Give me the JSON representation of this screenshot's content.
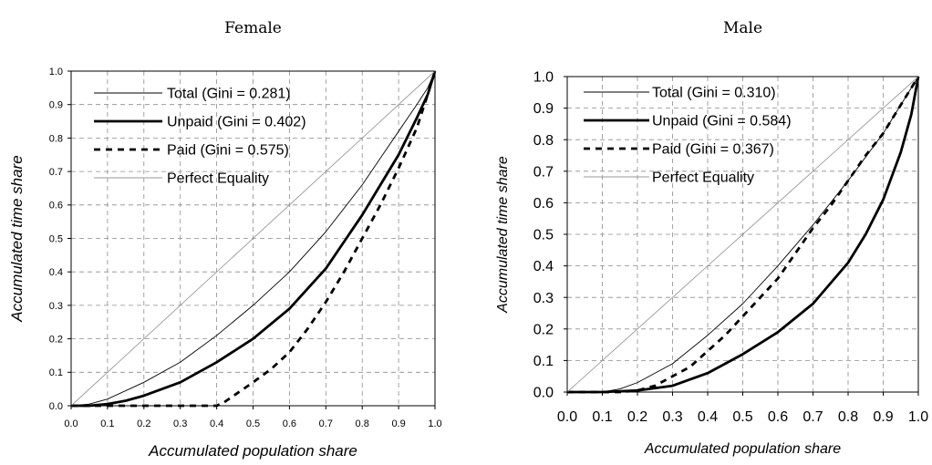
{
  "chart_data": [
    {
      "type": "line",
      "title": "Female",
      "xlabel": "Accumulated population share",
      "ylabel": "Accumulated time share",
      "xlim": [
        0,
        1
      ],
      "ylim": [
        0,
        1
      ],
      "xticks": [
        "0.0",
        "0.1",
        "0.2",
        "0.3",
        "0.4",
        "0.5",
        "0.6",
        "0.7",
        "0.8",
        "0.9",
        "1.0"
      ],
      "yticks": [
        "0.0",
        "0.1",
        "0.2",
        "0.3",
        "0.4",
        "0.5",
        "0.6",
        "0.7",
        "0.8",
        "0.9",
        "1.0"
      ],
      "grid": true,
      "legend_position": "top-left",
      "series": [
        {
          "name": "Total (Gini = 0.281)",
          "style": "thin",
          "color": "#000000",
          "x": [
            0,
            0.05,
            0.1,
            0.2,
            0.3,
            0.4,
            0.5,
            0.6,
            0.7,
            0.8,
            0.85,
            0.9,
            0.95,
            0.98,
            1.0
          ],
          "y": [
            0,
            0.005,
            0.02,
            0.07,
            0.13,
            0.21,
            0.3,
            0.4,
            0.52,
            0.66,
            0.74,
            0.82,
            0.9,
            0.95,
            1.0
          ]
        },
        {
          "name": "Unpaid (Gini = 0.402)",
          "style": "thick",
          "color": "#000000",
          "x": [
            0,
            0.05,
            0.1,
            0.15,
            0.2,
            0.3,
            0.4,
            0.5,
            0.6,
            0.7,
            0.8,
            0.85,
            0.9,
            0.95,
            0.98,
            1.0
          ],
          "y": [
            0,
            0.0,
            0.005,
            0.015,
            0.03,
            0.07,
            0.13,
            0.2,
            0.29,
            0.41,
            0.57,
            0.66,
            0.75,
            0.86,
            0.93,
            1.0
          ]
        },
        {
          "name": "Paid (Gini = 0.575)",
          "style": "dashed",
          "color": "#000000",
          "x": [
            0,
            0.1,
            0.2,
            0.3,
            0.4,
            0.42,
            0.46,
            0.5,
            0.55,
            0.6,
            0.65,
            0.7,
            0.75,
            0.8,
            0.85,
            0.9,
            0.95,
            0.98,
            1.0
          ],
          "y": [
            0,
            0,
            0,
            0,
            0.0,
            0.01,
            0.04,
            0.07,
            0.11,
            0.16,
            0.23,
            0.31,
            0.4,
            0.5,
            0.6,
            0.71,
            0.83,
            0.93,
            1.0
          ]
        },
        {
          "name": "Perfect Equality",
          "style": "equality",
          "color": "#999999",
          "x": [
            0,
            1
          ],
          "y": [
            0,
            1
          ]
        }
      ]
    },
    {
      "type": "line",
      "title": "Male",
      "xlabel": "Accumulated population share",
      "ylabel": "Accumulated time share",
      "xlim": [
        0,
        1
      ],
      "ylim": [
        0,
        1
      ],
      "xticks": [
        "0.0",
        "0.1",
        "0.2",
        "0.3",
        "0.4",
        "0.5",
        "0.6",
        "0.7",
        "0.8",
        "0.9",
        "1.0"
      ],
      "yticks": [
        "0.0",
        "0.1",
        "0.2",
        "0.3",
        "0.4",
        "0.5",
        "0.6",
        "0.7",
        "0.8",
        "0.9",
        "1.0"
      ],
      "grid": true,
      "legend_position": "top-left",
      "series": [
        {
          "name": "Total (Gini = 0.310)",
          "style": "thin",
          "color": "#000000",
          "x": [
            0,
            0.1,
            0.15,
            0.2,
            0.3,
            0.4,
            0.5,
            0.6,
            0.7,
            0.8,
            0.9,
            0.95,
            1.0
          ],
          "y": [
            0,
            0.0,
            0.01,
            0.03,
            0.09,
            0.18,
            0.28,
            0.4,
            0.53,
            0.67,
            0.82,
            0.91,
            1.0
          ]
        },
        {
          "name": "Unpaid (Gini = 0.584)",
          "style": "thick",
          "color": "#000000",
          "x": [
            0,
            0.1,
            0.2,
            0.3,
            0.4,
            0.5,
            0.6,
            0.7,
            0.8,
            0.85,
            0.9,
            0.95,
            0.98,
            1.0
          ],
          "y": [
            0,
            0,
            0.005,
            0.02,
            0.06,
            0.12,
            0.19,
            0.28,
            0.41,
            0.5,
            0.61,
            0.76,
            0.88,
            1.0
          ]
        },
        {
          "name": "Paid (Gini = 0.367)",
          "style": "dashed",
          "color": "#000000",
          "x": [
            0,
            0.15,
            0.2,
            0.25,
            0.3,
            0.35,
            0.4,
            0.45,
            0.5,
            0.55,
            0.6,
            0.65,
            0.7,
            0.75,
            0.8,
            0.85,
            0.9,
            0.95,
            1.0
          ],
          "y": [
            0,
            0,
            0.005,
            0.02,
            0.05,
            0.08,
            0.13,
            0.18,
            0.24,
            0.3,
            0.36,
            0.44,
            0.52,
            0.59,
            0.67,
            0.75,
            0.82,
            0.91,
            1.0
          ]
        },
        {
          "name": "Perfect Equality",
          "style": "equality",
          "color": "#999999",
          "x": [
            0,
            1
          ],
          "y": [
            0,
            1
          ]
        }
      ]
    }
  ]
}
